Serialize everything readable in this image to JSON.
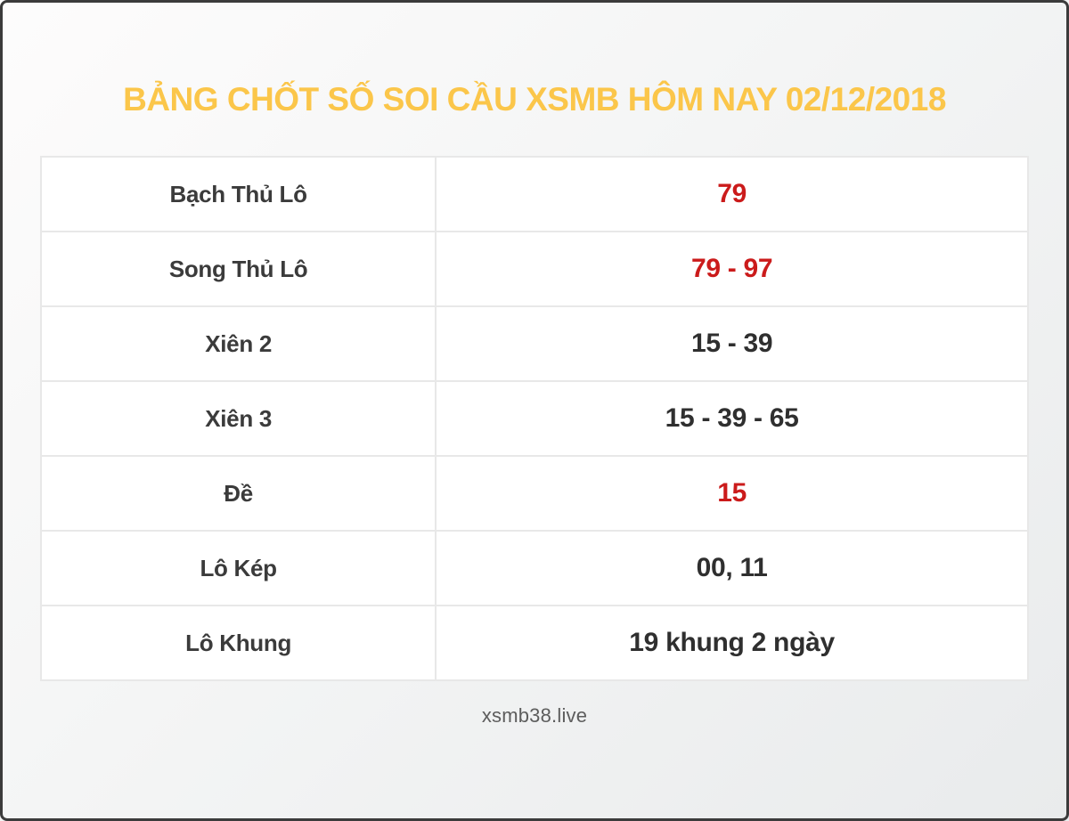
{
  "page": {
    "title": "BẢNG CHỐT SỐ SOI CẦU XSMB HÔM NAY 02/12/2018",
    "footer": "xsmb38.live"
  },
  "colors": {
    "title": "#fbc64a",
    "highlight": "#cb1b1b",
    "text": "#3b3b3b"
  },
  "table": {
    "rows": [
      {
        "label": "Bạch Thủ Lô",
        "value": "79",
        "highlight": true
      },
      {
        "label": "Song Thủ Lô",
        "value": "79 - 97",
        "highlight": true
      },
      {
        "label": "Xiên 2",
        "value": "15 - 39",
        "highlight": false
      },
      {
        "label": "Xiên 3",
        "value": "15 - 39 - 65",
        "highlight": false
      },
      {
        "label": "Đề",
        "value": "15",
        "highlight": true
      },
      {
        "label": "Lô Kép",
        "value": "00, 11",
        "highlight": false
      },
      {
        "label": "Lô Khung",
        "value": "19 khung 2 ngày",
        "highlight": false
      }
    ]
  }
}
